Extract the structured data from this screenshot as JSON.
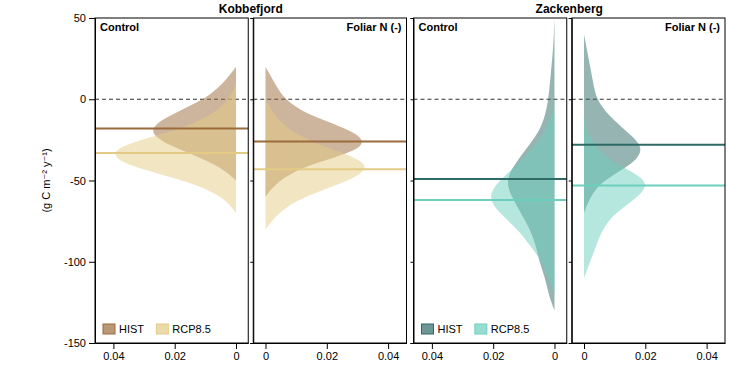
{
  "chart_data": {
    "type": "density",
    "ylabel": "(g C m⁻² y⁻¹)",
    "ylim": [
      -150,
      50
    ],
    "yticks": [
      50,
      0,
      -50,
      -100,
      -150
    ],
    "reference_y": 0,
    "legend": "lower left",
    "groups": [
      {
        "title": "Kobbefjord",
        "panels": [
          {
            "subtitle": "Control",
            "xlim": [
              0.046,
              -0.004
            ],
            "xticks": [
              0.04,
              0.02,
              0
            ],
            "series": [
              {
                "name": "HIST",
                "color": "#9c6b3c",
                "mean": -18,
                "y": [
                  -50,
                  -40,
                  -30,
                  -20,
                  -10,
                  0,
                  10,
                  20
                ],
                "density": [
                  0,
                  0.006,
                  0.02,
                  0.03,
                  0.022,
                  0.01,
                  0.004,
                  0
                ]
              },
              {
                "name": "RCP8.5",
                "color": "#e3cb86",
                "mean": -33,
                "y": [
                  -70,
                  -60,
                  -50,
                  -40,
                  -30,
                  -20,
                  -10,
                  0,
                  10
                ],
                "density": [
                  0,
                  0.004,
                  0.016,
                  0.038,
                  0.042,
                  0.02,
                  0.008,
                  0.002,
                  0
                ]
              }
            ]
          },
          {
            "subtitle": "Foliar N (-)",
            "xlim": [
              -0.004,
              0.046
            ],
            "xticks": [
              0,
              0.02,
              0.04
            ],
            "series": [
              {
                "name": "HIST",
                "color": "#9c6b3c",
                "mean": -26,
                "y": [
                  -60,
                  -50,
                  -40,
                  -30,
                  -20,
                  -10,
                  0,
                  10,
                  20
                ],
                "density": [
                  0,
                  0.004,
                  0.014,
                  0.034,
                  0.03,
                  0.014,
                  0.006,
                  0.003,
                  0
                ]
              },
              {
                "name": "RCP8.5",
                "color": "#e3cb86",
                "mean": -43,
                "y": [
                  -80,
                  -70,
                  -60,
                  -50,
                  -40,
                  -30,
                  -20,
                  -10,
                  0
                ],
                "density": [
                  0,
                  0.004,
                  0.012,
                  0.028,
                  0.036,
                  0.02,
                  0.008,
                  0.003,
                  0
                ]
              }
            ]
          }
        ]
      },
      {
        "title": "Zackenberg",
        "panels": [
          {
            "subtitle": "Control",
            "xlim": [
              0.046,
              -0.004
            ],
            "xticks": [
              0.04,
              0.02,
              0
            ],
            "series": [
              {
                "name": "HIST",
                "color": "#2e6b66",
                "mean": -49,
                "y": [
                  -130,
                  -120,
                  -110,
                  -100,
                  -90,
                  -80,
                  -70,
                  -60,
                  -50,
                  -40,
                  -30,
                  -20,
                  -10,
                  0,
                  10,
                  20,
                  30,
                  40,
                  50
                ],
                "density": [
                  0,
                  0.002,
                  0.003,
                  0.005,
                  0.006,
                  0.008,
                  0.011,
                  0.014,
                  0.016,
                  0.013,
                  0.009,
                  0.005,
                  0.003,
                  0.002,
                  0.0015,
                  0.001,
                  0.0005,
                  0.0002,
                  0
                ]
              },
              {
                "name": "RCP8.5",
                "color": "#6ccfbd",
                "mean": -62,
                "y": [
                  -120,
                  -110,
                  -100,
                  -90,
                  -80,
                  -70,
                  -60,
                  -50,
                  -40,
                  -30,
                  -20,
                  -10,
                  0
                ],
                "density": [
                  0,
                  0.002,
                  0.004,
                  0.008,
                  0.012,
                  0.018,
                  0.022,
                  0.018,
                  0.012,
                  0.007,
                  0.003,
                  0.001,
                  0
                ]
              }
            ]
          },
          {
            "subtitle": "Foliar N (-)",
            "xlim": [
              -0.004,
              0.046
            ],
            "xticks": [
              0,
              0.02,
              0.04
            ],
            "series": [
              {
                "name": "HIST",
                "color": "#2e6b66",
                "mean": -28,
                "y": [
                  -70,
                  -60,
                  -50,
                  -40,
                  -30,
                  -20,
                  -10,
                  0,
                  10,
                  20,
                  30,
                  40
                ],
                "density": [
                  0,
                  0.002,
                  0.006,
                  0.016,
                  0.02,
                  0.014,
                  0.008,
                  0.004,
                  0.003,
                  0.002,
                  0.001,
                  0
                ]
              },
              {
                "name": "RCP8.5",
                "color": "#6ccfbd",
                "mean": -53,
                "y": [
                  -110,
                  -100,
                  -90,
                  -80,
                  -70,
                  -60,
                  -50,
                  -40,
                  -30,
                  -20,
                  -10
                ],
                "density": [
                  0,
                  0.002,
                  0.004,
                  0.006,
                  0.01,
                  0.018,
                  0.022,
                  0.01,
                  0.004,
                  0.001,
                  0
                ]
              }
            ]
          }
        ]
      }
    ]
  }
}
